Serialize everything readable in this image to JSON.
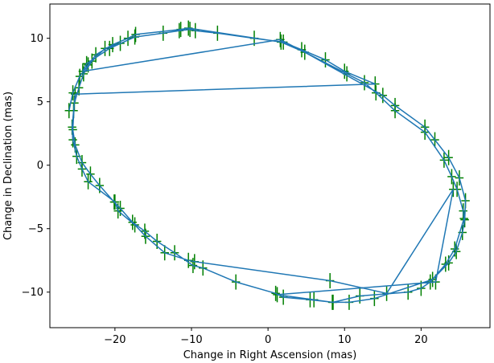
{
  "chart_data": {
    "type": "scatter",
    "xlabel": "Change in Right Ascension (mas)",
    "ylabel": "Change in Declination (mas)",
    "xlim": [
      -28.5,
      29.0
    ],
    "ylim": [
      -12.8,
      12.7
    ],
    "xticks": [
      -20,
      -10,
      0,
      10,
      20
    ],
    "yticks": [
      -10,
      -5,
      0,
      5,
      10
    ],
    "xtick_labels": [
      "−20",
      "−10",
      "0",
      "10",
      "20"
    ],
    "ytick_labels": [
      "−10",
      "−5",
      "0",
      "5",
      "10"
    ],
    "grid": false,
    "line_color": "#1f77b4",
    "error_color": "#008000",
    "x_error": 0.55,
    "y_error": 0.6,
    "series": [
      {
        "points": [
          [
            -26.0,
            4.3
          ],
          [
            -25.5,
            5.7
          ],
          [
            -24.6,
            7.0
          ],
          [
            -23.5,
            7.9
          ],
          [
            -22.5,
            8.7
          ],
          [
            -20.3,
            9.5
          ],
          [
            -18.3,
            10.0
          ],
          [
            -17.3,
            10.3
          ],
          [
            -11.4,
            10.7
          ],
          [
            -10.4,
            10.8
          ],
          [
            1.7,
            9.7
          ],
          [
            4.8,
            8.9
          ],
          [
            15.0,
            5.5
          ],
          [
            16.6,
            4.7
          ],
          [
            20.5,
            3.0
          ],
          [
            21.8,
            2.0
          ],
          [
            23.6,
            0.6
          ],
          [
            25.0,
            -1.0
          ],
          [
            25.8,
            -2.8
          ],
          [
            25.7,
            -4.3
          ],
          [
            25.4,
            -5.3
          ],
          [
            24.6,
            -6.8
          ],
          [
            23.6,
            -7.7
          ],
          [
            21.5,
            -9.0
          ],
          [
            13.9,
            -10.5
          ],
          [
            10.6,
            -10.8
          ],
          [
            8.4,
            -10.8
          ],
          [
            6.0,
            -10.6
          ],
          [
            1.2,
            -10.2
          ],
          [
            21.9,
            -9.2
          ],
          [
            24.2,
            -1.9
          ],
          [
            15.5,
            -10.1
          ],
          [
            8.1,
            -9.1
          ],
          [
            -9.6,
            -7.6
          ],
          [
            -10.4,
            -7.5
          ],
          [
            -13.5,
            -6.9
          ],
          [
            -16.0,
            -5.6
          ],
          [
            -17.4,
            -4.7
          ],
          [
            -19.6,
            -3.6
          ],
          [
            -20.0,
            -2.9
          ],
          [
            -23.5,
            -1.3
          ],
          [
            -24.3,
            -0.3
          ],
          [
            -25.0,
            0.7
          ],
          [
            -25.5,
            2.0
          ],
          [
            -25.6,
            3.0
          ],
          [
            -25.4,
            4.3
          ],
          [
            -25.2,
            5.6
          ],
          [
            14.0,
            6.4
          ],
          [
            10.0,
            7.4
          ],
          [
            7.5,
            8.3
          ],
          [
            4.4,
            9.1
          ],
          [
            2.0,
            9.7
          ],
          [
            -1.8,
            10.0
          ],
          [
            -6.6,
            10.4
          ],
          [
            -9.5,
            10.6
          ],
          [
            -10.2,
            10.7
          ],
          [
            -11.6,
            10.6
          ],
          [
            -13.7,
            10.4
          ],
          [
            -17.4,
            10.1
          ],
          [
            -20.7,
            9.2
          ],
          [
            -23.7,
            8.0
          ],
          [
            -24.2,
            7.4
          ],
          [
            1.6,
            9.9
          ],
          [
            10.3,
            7.2
          ],
          [
            12.6,
            6.5
          ],
          [
            14.1,
            5.7
          ],
          [
            16.6,
            4.3
          ],
          [
            20.5,
            2.6
          ],
          [
            23.0,
            0.4
          ],
          [
            24.0,
            -0.9
          ],
          [
            24.7,
            -1.9
          ],
          [
            25.5,
            -3.6
          ],
          [
            25.6,
            -4.2
          ],
          [
            24.4,
            -6.6
          ],
          [
            23.2,
            -7.8
          ],
          [
            21.2,
            -9.2
          ],
          [
            20.0,
            -9.7
          ],
          [
            18.3,
            -10.0
          ],
          [
            12.0,
            -10.3
          ],
          [
            8.5,
            -10.8
          ],
          [
            5.5,
            -10.6
          ],
          [
            2.0,
            -10.4
          ],
          [
            1.0,
            -10.1
          ],
          [
            -4.2,
            -9.2
          ],
          [
            -8.5,
            -8.1
          ],
          [
            -9.8,
            -7.9
          ],
          [
            -12.2,
            -6.9
          ],
          [
            -14.5,
            -6.0
          ],
          [
            -16.1,
            -5.2
          ],
          [
            -17.7,
            -4.5
          ],
          [
            -19.3,
            -3.4
          ],
          [
            -20.1,
            -2.9
          ],
          [
            -22.0,
            -1.6
          ],
          [
            -23.2,
            -0.7
          ],
          [
            -24.3,
            0.2
          ],
          [
            -25.2,
            1.6
          ],
          [
            -25.5,
            2.8
          ],
          [
            -25.3,
            4.9
          ],
          [
            -24.7,
            6.1
          ],
          [
            -24.1,
            7.2
          ],
          [
            -23.0,
            8.2
          ],
          [
            -21.3,
            9.2
          ],
          [
            -19.3,
            9.6
          ]
        ]
      }
    ]
  }
}
